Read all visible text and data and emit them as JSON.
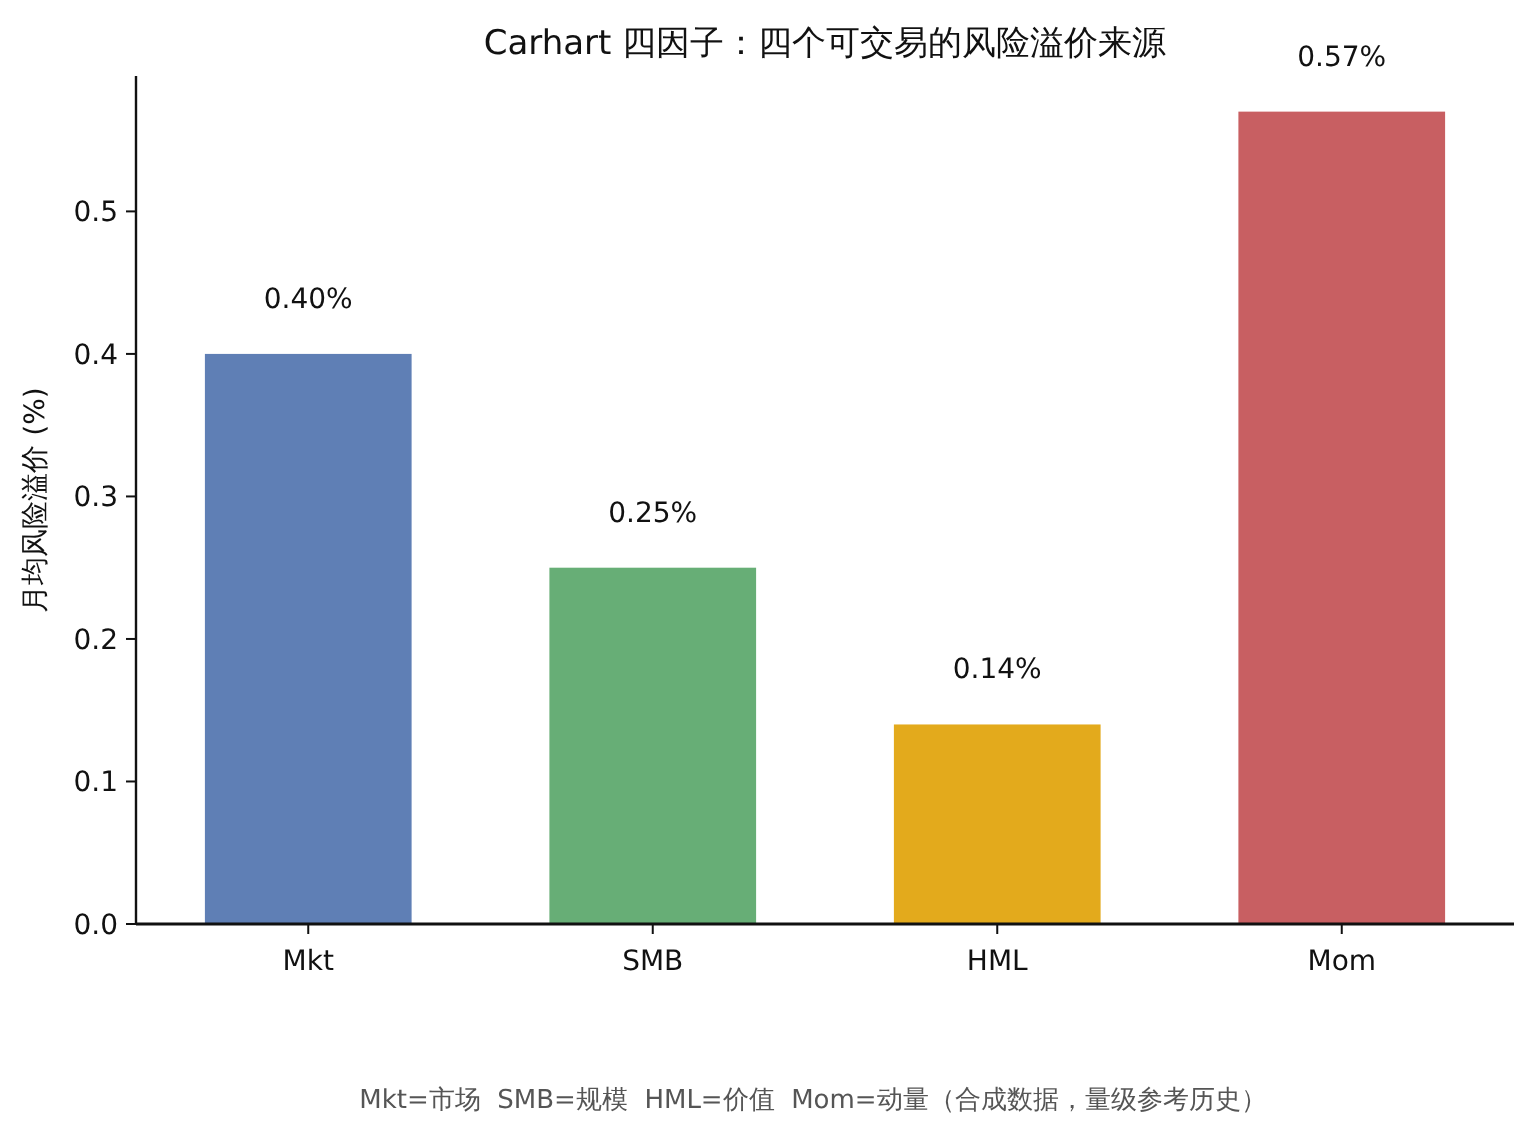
{
  "chart_data": {
    "type": "bar",
    "title": "Carhart 四因子：四个可交易的风险溢价来源",
    "ylabel": "月均风险溢价 (%)",
    "categories": [
      "Mkt",
      "SMB",
      "HML",
      "Mom"
    ],
    "values": [
      0.4,
      0.25,
      0.14,
      0.57
    ],
    "colors": [
      "#5f7fb5",
      "#67ae76",
      "#e3aa1c",
      "#c85f62"
    ],
    "value_labels": [
      "0.40%",
      "0.25%",
      "0.14%",
      "0.57%"
    ],
    "ylim": [
      0,
      0.595
    ],
    "yticks": [
      {
        "value": 0,
        "label": "0.0"
      },
      {
        "value": 0.1,
        "label": "0.1"
      },
      {
        "value": 0.2,
        "label": "0.2"
      },
      {
        "value": 0.3,
        "label": "0.3"
      },
      {
        "value": 0.4,
        "label": "0.4"
      },
      {
        "value": 0.5,
        "label": "0.5"
      }
    ],
    "grid": false,
    "annotations": [
      "Mkt=市场  SMB=规模  HML=价值  Mom=动量（合成数据，量级参考历史）"
    ]
  }
}
